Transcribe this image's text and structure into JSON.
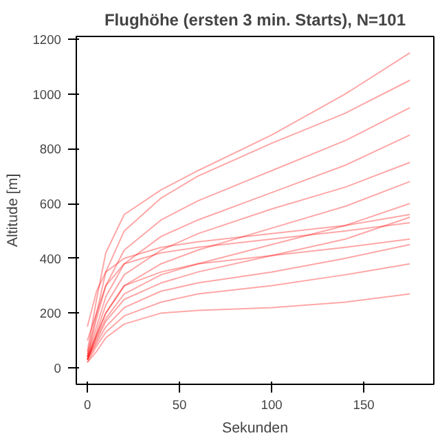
{
  "chart_data": {
    "type": "line",
    "title": "Flughöhe (ersten 3 min. Starts), N=101",
    "xlabel": "Sekunden",
    "ylabel": "Altitude [m]",
    "x": [
      0,
      5,
      10,
      20,
      40,
      60,
      100,
      140,
      175
    ],
    "xlim": [
      -6,
      188
    ],
    "ylim": [
      -60,
      1210
    ],
    "xticks": [
      0,
      50,
      100,
      150
    ],
    "yticks": [
      0,
      200,
      400,
      600,
      800,
      1000,
      1200
    ],
    "grid": false,
    "marker": "none",
    "line_style": "solid",
    "series": [
      {
        "color": "#ff0000",
        "values": [
          60,
          250,
          420,
          560,
          650,
          720,
          850,
          1000,
          1150
        ]
      },
      {
        "color": "#ff0000",
        "values": [
          50,
          200,
          350,
          500,
          620,
          700,
          820,
          930,
          1050
        ]
      },
      {
        "color": "#ff0000",
        "values": [
          40,
          180,
          300,
          430,
          540,
          610,
          720,
          830,
          950
        ]
      },
      {
        "color": "#ff0000",
        "values": [
          40,
          150,
          260,
          380,
          480,
          540,
          640,
          740,
          850
        ]
      },
      {
        "color": "#ff0000",
        "values": [
          30,
          130,
          230,
          340,
          430,
          490,
          580,
          660,
          750
        ]
      },
      {
        "color": "#ff0000",
        "values": [
          30,
          120,
          200,
          300,
          380,
          430,
          510,
          590,
          680
        ]
      },
      {
        "color": "#ff0000",
        "values": [
          30,
          110,
          180,
          270,
          340,
          380,
          450,
          520,
          600
        ]
      },
      {
        "color": "#ff0000",
        "values": [
          30,
          100,
          170,
          250,
          310,
          350,
          410,
          470,
          550
        ]
      },
      {
        "color": "#ff0000",
        "values": [
          40,
          120,
          200,
          300,
          350,
          380,
          410,
          440,
          470
        ]
      },
      {
        "color": "#ff0000",
        "values": [
          30,
          90,
          150,
          220,
          280,
          310,
          350,
          400,
          450
        ]
      },
      {
        "color": "#ff0000",
        "values": [
          20,
          80,
          130,
          190,
          240,
          270,
          300,
          340,
          380
        ]
      },
      {
        "color": "#ff0000",
        "values": [
          20,
          60,
          110,
          160,
          200,
          210,
          220,
          240,
          270
        ]
      },
      {
        "color": "#ff0000",
        "values": [
          100,
          200,
          300,
          380,
          420,
          440,
          470,
          500,
          530
        ]
      },
      {
        "color": "#ff0000",
        "values": [
          150,
          280,
          350,
          400,
          440,
          460,
          490,
          520,
          560
        ]
      }
    ]
  }
}
